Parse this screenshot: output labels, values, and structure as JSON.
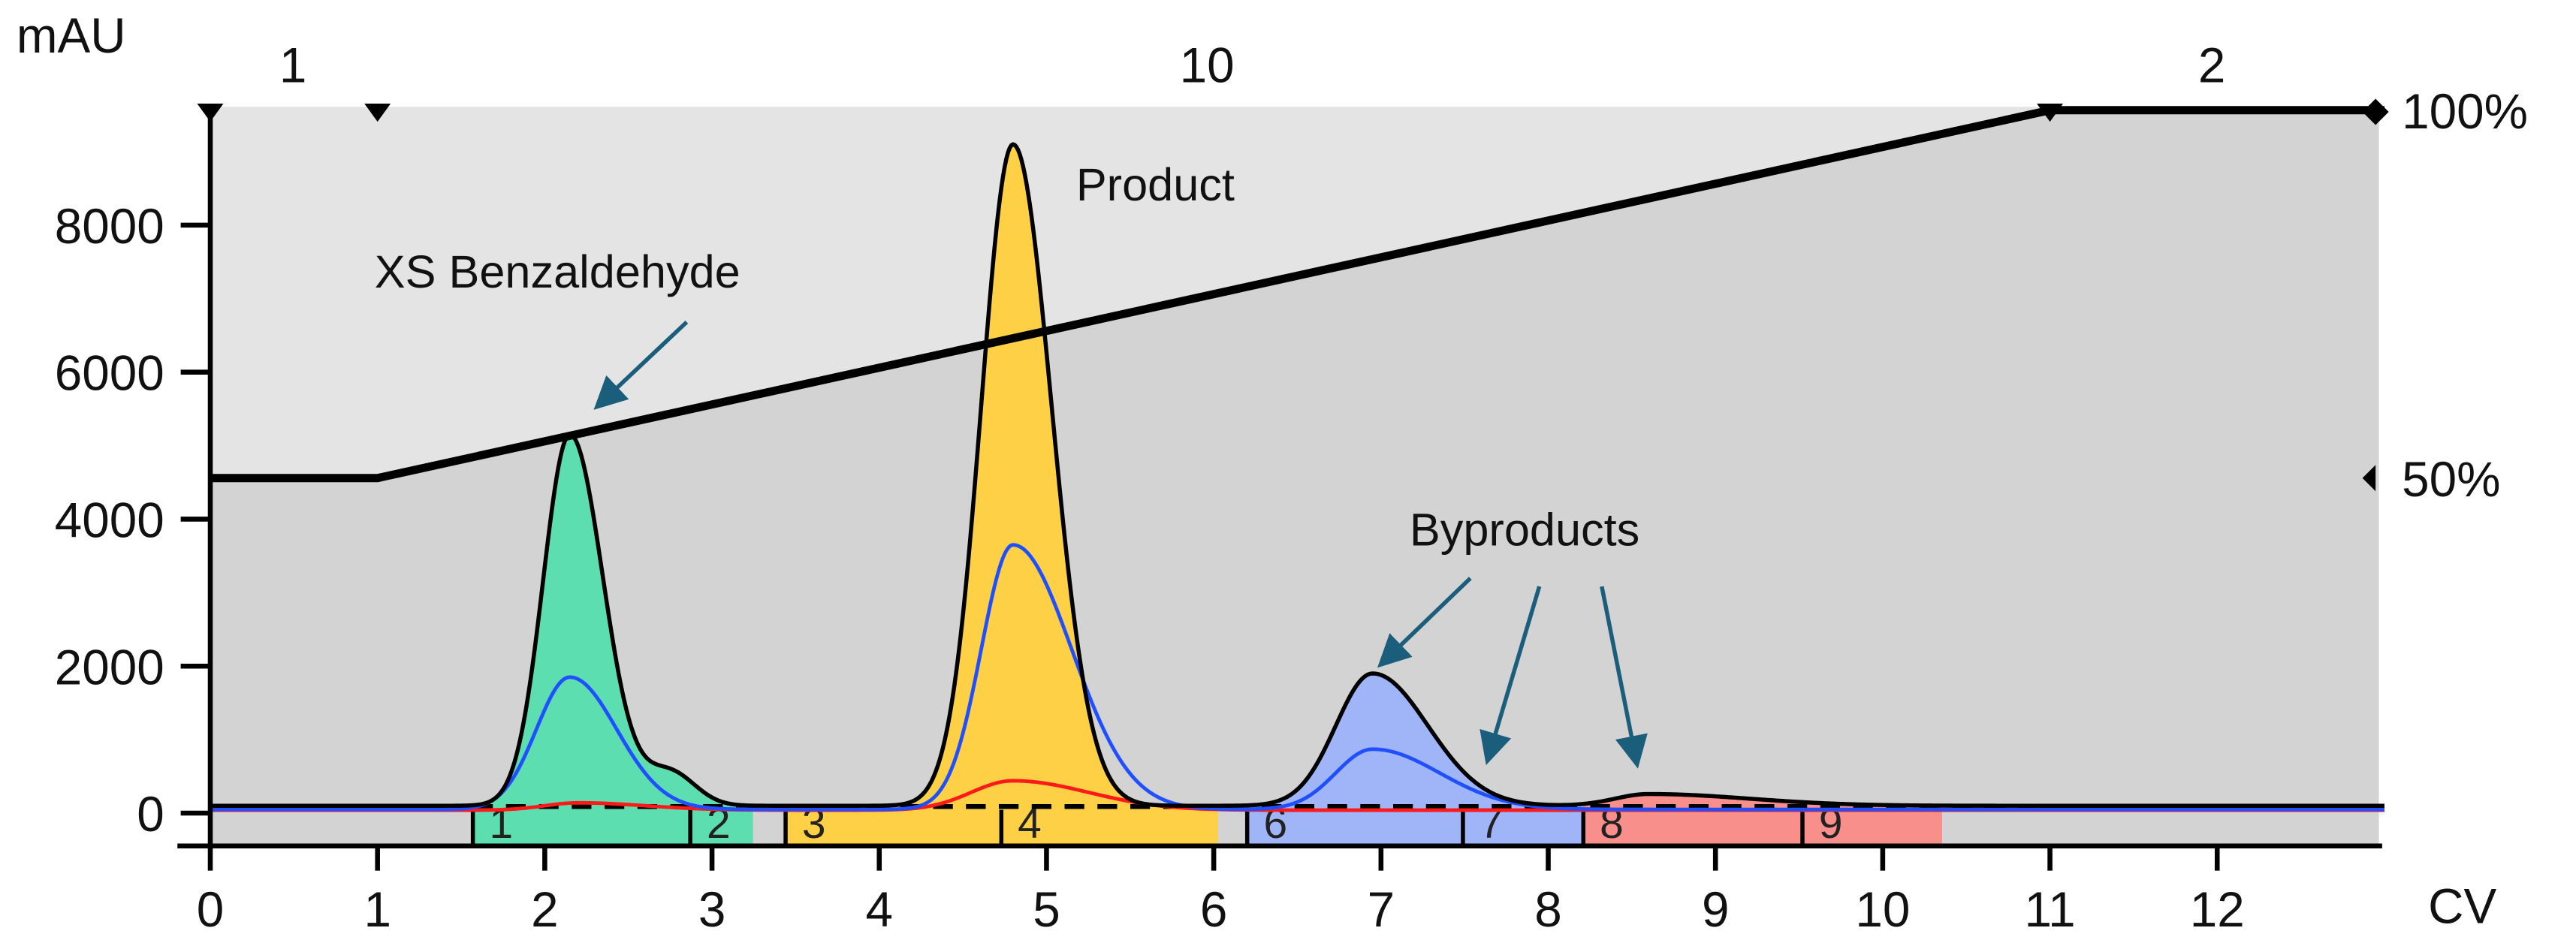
{
  "chart_data": {
    "type": "line",
    "ylabel": "mAU",
    "xlabel": "CV",
    "xlim": [
      0,
      13
    ],
    "ylim": [
      -500,
      9600
    ],
    "x_ticks": [
      "0",
      "1",
      "2",
      "3",
      "4",
      "5",
      "6",
      "7",
      "8",
      "9",
      "10",
      "11",
      "12"
    ],
    "y_ticks": [
      "0",
      "2000",
      "4000",
      "6000",
      "8000"
    ],
    "gradient": {
      "ticks": [
        "50%",
        "100%"
      ],
      "points": [
        [
          0,
          50
        ],
        [
          1,
          50
        ],
        [
          11,
          100
        ],
        [
          13,
          100
        ]
      ]
    },
    "top_labels": [
      {
        "text": "1",
        "cv": 0.5
      },
      {
        "text": "10",
        "cv": 6
      },
      {
        "text": "2",
        "cv": 12
      }
    ],
    "markers_cv": [
      0,
      1,
      11,
      13
    ],
    "baseline_mAU": 100,
    "traces": [
      {
        "color": "#000000",
        "peaks": [
          {
            "cv": 2.15,
            "mAU": 5050,
            "sigma_left": 0.16,
            "sigma_right": 0.2
          },
          {
            "cv": 2.75,
            "mAU": 450,
            "sigma_left": 0.15,
            "sigma_right": 0.15
          },
          {
            "cv": 4.8,
            "mAU": 9000,
            "sigma_left": 0.19,
            "sigma_right": 0.23
          },
          {
            "cv": 6.95,
            "mAU": 1800,
            "sigma_left": 0.22,
            "sigma_right": 0.33
          },
          {
            "cv": 8.6,
            "mAU": 160,
            "sigma_left": 0.2,
            "sigma_right": 0.6
          }
        ]
      },
      {
        "color": "#1f4fff",
        "peaks": [
          {
            "cv": 2.15,
            "mAU": 1800,
            "sigma_left": 0.2,
            "sigma_right": 0.28
          },
          {
            "cv": 4.8,
            "mAU": 3600,
            "sigma_left": 0.19,
            "sigma_right": 0.35
          },
          {
            "cv": 6.95,
            "mAU": 820,
            "sigma_left": 0.22,
            "sigma_right": 0.4
          }
        ]
      },
      {
        "color": "#ff1a1a",
        "peaks": [
          {
            "cv": 2.2,
            "mAU": 100,
            "sigma_left": 0.2,
            "sigma_right": 0.4
          },
          {
            "cv": 4.8,
            "mAU": 400,
            "sigma_left": 0.25,
            "sigma_right": 0.45
          }
        ]
      }
    ],
    "fraction_groups": [
      {
        "color": "#5ddeb0",
        "start_cv": 1.57,
        "end_cv": 3.24,
        "fractions": [
          {
            "label": "1",
            "start_cv": 1.57
          },
          {
            "label": "2",
            "start_cv": 2.87
          }
        ]
      },
      {
        "color": "#fdd045",
        "start_cv": 3.44,
        "end_cv": 6.02,
        "fractions": [
          {
            "label": "3",
            "start_cv": 3.44
          },
          {
            "label": "4",
            "start_cv": 4.73
          }
        ]
      },
      {
        "color": "#9fb5f8",
        "start_cv": 6.2,
        "end_cv": 8.21,
        "fractions": [
          {
            "label": "6",
            "start_cv": 6.2
          },
          {
            "label": "7",
            "start_cv": 7.49
          }
        ]
      },
      {
        "color": "#f88f8a",
        "start_cv": 8.21,
        "end_cv": 10.35,
        "fractions": [
          {
            "label": "8",
            "start_cv": 8.21
          },
          {
            "label": "9",
            "start_cv": 9.52
          }
        ]
      }
    ],
    "annotations": {
      "product": "Product",
      "benzaldehyde": "XS Benzaldehyde",
      "byproducts": "Byproducts"
    },
    "colors": {
      "arrow": "#1b5e7c",
      "plot_upper": "#e4e4e4",
      "plot_lower": "#d3d3d3"
    }
  }
}
